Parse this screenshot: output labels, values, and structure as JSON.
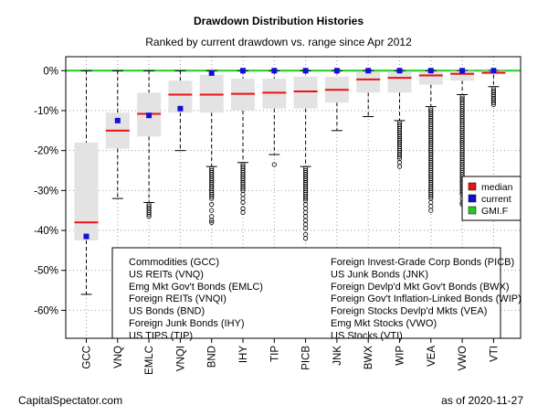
{
  "chart_data": {
    "type": "boxplot",
    "title": "Drawdown Distribution Histories",
    "subtitle": "Ranked by current drawdown vs. range since Apr 2012",
    "ylim": [
      -0.67,
      0.035
    ],
    "y_ticks": [
      0,
      -10,
      -20,
      -30,
      -40,
      -50,
      -60
    ],
    "y_tick_labels": [
      "0%",
      "-10%",
      "-20%",
      "-30%",
      "-40%",
      "-50%",
      "-60%"
    ],
    "grid": true,
    "reference_line": {
      "label": "GMI.F",
      "value": 0,
      "color": "#22cc22"
    },
    "colors": {
      "median": "#ee1111",
      "current": "#1010d8",
      "box": "#e3e3e3"
    },
    "legend_position": "right",
    "legend": [
      {
        "label": "median",
        "color": "#ee1111"
      },
      {
        "label": "current",
        "color": "#1010d8"
      },
      {
        "label": "GMI.F",
        "color": "#22cc22"
      }
    ],
    "categories": [
      "GCC",
      "VNQ",
      "EMLC",
      "VNQI",
      "BND",
      "IHY",
      "TIP",
      "PICB",
      "JNK",
      "BWX",
      "WIP",
      "VEA",
      "VWO",
      "VTI"
    ],
    "series": [
      {
        "ticker": "GCC",
        "q1": -42.5,
        "median": -38.0,
        "q3": -18.0,
        "wlow": -56.0,
        "whigh": 0.0,
        "current": -41.5,
        "outliers": []
      },
      {
        "ticker": "VNQ",
        "q1": -19.5,
        "median": -15.0,
        "q3": -10.5,
        "wlow": -32.0,
        "whigh": 0.0,
        "current": -12.5,
        "outliers": []
      },
      {
        "ticker": "EMLC",
        "q1": -16.5,
        "median": -10.8,
        "q3": -5.5,
        "wlow": -33.0,
        "whigh": 0.0,
        "current": -11.2,
        "outliers": [
          -33.5,
          -34.0,
          -34.5,
          -35.0,
          -35.5,
          -36.0,
          -36.5
        ]
      },
      {
        "ticker": "VNQI",
        "q1": -10.5,
        "median": -6.0,
        "q3": -2.5,
        "wlow": -20.0,
        "whigh": 0.0,
        "current": -9.5,
        "outliers": []
      },
      {
        "ticker": "BND",
        "q1": -10.5,
        "median": -6.0,
        "q3": -1.0,
        "wlow": -24.0,
        "whigh": 0.0,
        "current": -0.6,
        "outliers": [
          -24.5,
          -25.0,
          -25.5,
          -26.0,
          -26.5,
          -27.0,
          -27.5,
          -28.0,
          -28.5,
          -29.0,
          -29.5,
          -30.0,
          -30.5,
          -31.0,
          -31.5,
          -32.0,
          -33.5,
          -35.0,
          -36.5,
          -37.5,
          -38.0
        ]
      },
      {
        "ticker": "IHY",
        "q1": -10.0,
        "median": -5.8,
        "q3": -2.0,
        "wlow": -23.0,
        "whigh": 0.0,
        "current": 0.0,
        "outliers": [
          -23.5,
          -24.0,
          -24.5,
          -25.0,
          -25.5,
          -26.0,
          -26.5,
          -27.0,
          -27.5,
          -28.0,
          -28.5,
          -29.0,
          -29.5,
          -30.0,
          -31.0,
          -32.0,
          -33.0,
          -34.5,
          -35.5
        ]
      },
      {
        "ticker": "TIP",
        "q1": -9.5,
        "median": -5.5,
        "q3": -2.0,
        "wlow": -21.0,
        "whigh": 0.0,
        "current": 0.0,
        "outliers": [
          -23.5
        ]
      },
      {
        "ticker": "PICB",
        "q1": -9.5,
        "median": -5.2,
        "q3": -1.5,
        "wlow": -24.0,
        "whigh": 0.0,
        "current": 0.0,
        "outliers": [
          -24.5,
          -25.0,
          -25.5,
          -26.0,
          -26.5,
          -27.0,
          -27.5,
          -28.0,
          -28.5,
          -29.0,
          -29.5,
          -30.0,
          -30.5,
          -31.0,
          -31.5,
          -32.0,
          -32.5,
          -33.5,
          -34.5,
          -35.5,
          -36.5,
          -37.5,
          -38.5,
          -39.5,
          -41.0,
          -42.0
        ]
      },
      {
        "ticker": "JNK",
        "q1": -8.0,
        "median": -4.8,
        "q3": -1.5,
        "wlow": -15.0,
        "whigh": 0.0,
        "current": 0.0,
        "outliers": []
      },
      {
        "ticker": "BWX",
        "q1": -5.5,
        "median": -2.2,
        "q3": -0.3,
        "wlow": -11.5,
        "whigh": 0.0,
        "current": 0.0,
        "outliers": []
      },
      {
        "ticker": "WIP",
        "q1": -5.5,
        "median": -1.8,
        "q3": -0.3,
        "wlow": -12.5,
        "whigh": 0.0,
        "current": 0.0,
        "outliers": [
          -13.0,
          -13.5,
          -14.0,
          -14.5,
          -15.0,
          -15.5,
          -16.0,
          -16.5,
          -17.0,
          -17.5,
          -18.0,
          -18.5,
          -19.0,
          -19.5,
          -20.0,
          -20.5,
          -21.0,
          -21.5,
          -22.0,
          -23.0,
          -24.0
        ]
      },
      {
        "ticker": "VEA",
        "q1": -3.5,
        "median": -1.2,
        "q3": -0.2,
        "wlow": -9.0,
        "whigh": 0.0,
        "current": 0.0,
        "outliers": [
          -9.5,
          -10.0,
          -10.5,
          -11.0,
          -11.5,
          -12.0,
          -12.5,
          -13.0,
          -13.5,
          -14.0,
          -14.5,
          -15.0,
          -15.5,
          -16.0,
          -16.5,
          -17.0,
          -17.5,
          -18.0,
          -18.5,
          -19.0,
          -19.5,
          -20.0,
          -20.5,
          -21.0,
          -21.5,
          -22.0,
          -22.5,
          -23.0,
          -23.5,
          -24.0,
          -24.5,
          -25.0,
          -25.5,
          -26.0,
          -26.5,
          -27.0,
          -27.5,
          -28.0,
          -28.5,
          -29.0,
          -29.5,
          -30.0,
          -30.5,
          -31.0,
          -31.5,
          -32.0,
          -33.0,
          -34.0,
          -35.0
        ]
      },
      {
        "ticker": "VWO",
        "q1": -2.5,
        "median": -0.8,
        "q3": -0.1,
        "wlow": -6.0,
        "whigh": 0.0,
        "current": 0.0,
        "outliers": [
          -6.5,
          -7.0,
          -7.5,
          -8.0,
          -8.5,
          -9.0,
          -9.5,
          -10.0,
          -10.5,
          -11.0,
          -11.5,
          -12.0,
          -12.5,
          -13.0,
          -13.5,
          -14.0,
          -14.5,
          -15.0,
          -15.5,
          -16.0,
          -16.5,
          -17.0,
          -17.5,
          -18.0,
          -18.5,
          -19.0,
          -19.5,
          -20.0,
          -20.5,
          -21.0,
          -21.5,
          -22.0,
          -22.5,
          -23.0,
          -23.5,
          -24.0,
          -24.5,
          -25.0,
          -25.5,
          -26.0,
          -26.5,
          -27.0,
          -27.5,
          -28.0,
          -28.5,
          -29.0,
          -29.5,
          -30.0,
          -30.5,
          -31.0,
          -32.0,
          -33.0,
          -33.5
        ]
      },
      {
        "ticker": "VTI",
        "q1": -1.0,
        "median": -0.5,
        "q3": -0.05,
        "wlow": -4.0,
        "whigh": 0.0,
        "current": 0.0,
        "outliers": [
          -4.5,
          -5.0,
          -5.5,
          -6.0,
          -6.5,
          -7.0,
          -7.5,
          -8.0,
          -8.5
        ]
      }
    ],
    "names_legend": [
      "Commodities (GCC)",
      "US REITs (VNQ)",
      "Emg Mkt Gov't Bonds (EMLC)",
      "Foreign REITs (VNQI)",
      "US Bonds (BND)",
      "Foreign Junk Bonds (IHY)",
      "US TIPS (TIP)",
      "Foreign Invest-Grade Corp Bonds (PICB)",
      "US Junk Bonds (JNK)",
      "Foreign Devlp'd Mkt Gov't Bonds (BWX)",
      "Foreign Gov't Inflation-Linked Bonds (WIP)",
      "Foreign Stocks Devlp'd Mkts (VEA)",
      "Emg Mkt Stocks (VWO)",
      "US Stocks (VTI)"
    ]
  },
  "footer": {
    "source": "CapitalSpectator.com",
    "date": "as of  2020-11-27"
  }
}
